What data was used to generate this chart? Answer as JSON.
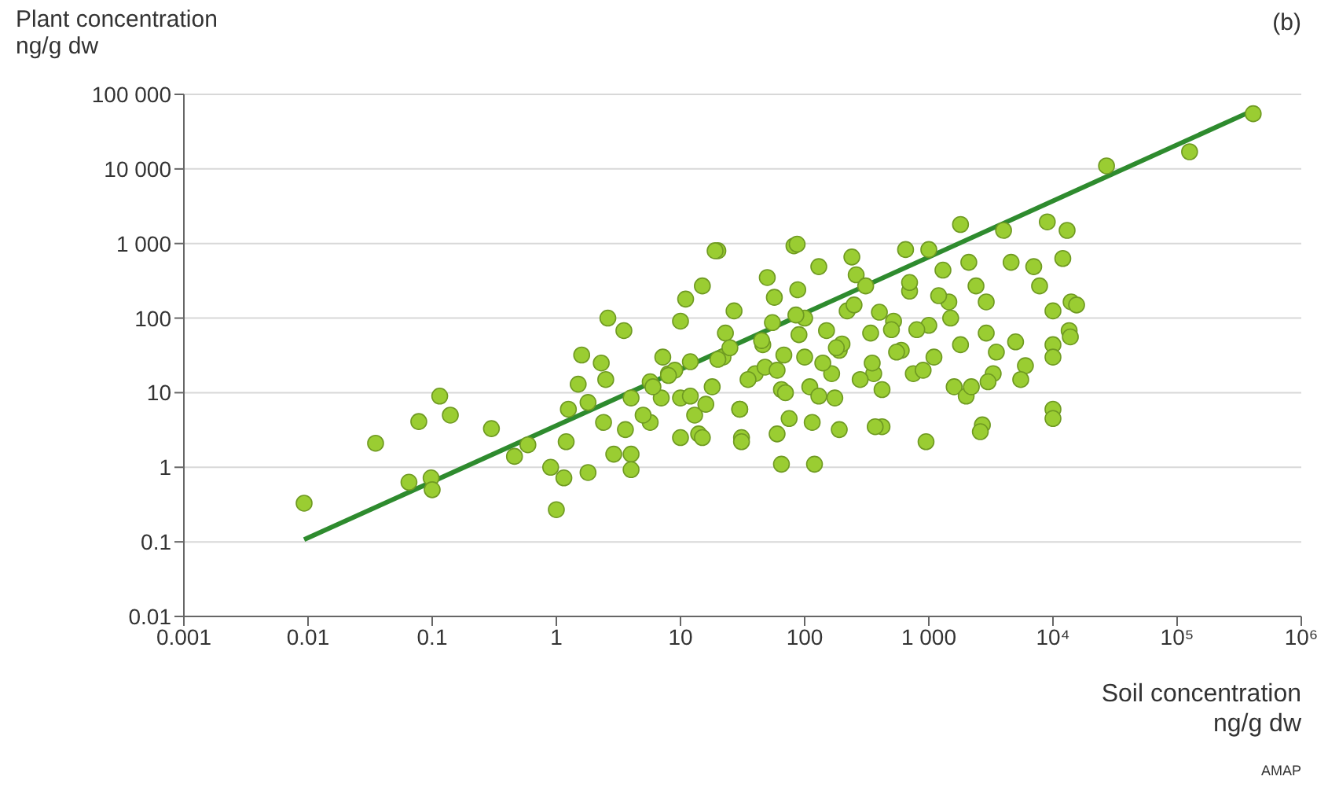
{
  "chart_data": {
    "type": "scatter",
    "xlabel": "Soil concentration\nng/g dw",
    "ylabel": "Plant concentration\nng/g dw",
    "annotations": [
      "(b)",
      "AMAP"
    ],
    "log": "xy",
    "grid": "y",
    "legend": false,
    "xlim": [
      0.001,
      1000000
    ],
    "xticks": [
      0.001,
      0.01,
      0.1,
      1,
      10,
      100,
      {
        "value": 1000,
        "label": "1 000"
      },
      {
        "value": 10000,
        "label": "10⁴"
      },
      {
        "value": 100000,
        "label": "10⁵"
      },
      {
        "value": 1000000,
        "label": "10⁶"
      }
    ],
    "ylim": [
      0.01,
      100000
    ],
    "yticks": [
      0.01,
      0.1,
      1,
      10,
      100,
      {
        "value": 1000,
        "label": "1 000"
      },
      {
        "value": 10000,
        "label": "10 000"
      },
      {
        "value": 100000,
        "label": "100 000"
      }
    ],
    "series": [
      {
        "type": "scatter",
        "color": "#9acd32",
        "x": [
          0.0093,
          0.035,
          0.065,
          0.098,
          0.1,
          0.078,
          0.115,
          0.14,
          0.3,
          0.46,
          0.59,
          0.9,
          1.0,
          1.15,
          1.2,
          1.8,
          1.25,
          1.8,
          2.4,
          2.3,
          2.6,
          3.5,
          1.6,
          1.5,
          2.5,
          4,
          4,
          4,
          3.6,
          2.9,
          5.7,
          5.7,
          7.2,
          10,
          11,
          15,
          20,
          7,
          8,
          12,
          10,
          13,
          10,
          14,
          18,
          22,
          23,
          27,
          30,
          31,
          40,
          46,
          55,
          50,
          57,
          68,
          65,
          75,
          65,
          82,
          88,
          100,
          100,
          110,
          115,
          120,
          130,
          150,
          165,
          175,
          190,
          220,
          260,
          240,
          310,
          340,
          360,
          420,
          420,
          520,
          600,
          650,
          700,
          750,
          950,
          1000,
          1000,
          1100,
          1300,
          1450,
          1600,
          1800,
          2100,
          2400,
          2700,
          2900,
          2900,
          3300,
          4000,
          4600,
          5000,
          6000,
          7000,
          7800,
          9000,
          10000,
          10000,
          10000,
          10000,
          12000,
          13000,
          13500,
          14000,
          1800,
          27000,
          126000,
          410000,
          15500,
          13800,
          10000,
          19,
          87,
          15,
          31,
          60,
          190,
          370,
          2600,
          6,
          9,
          16,
          25,
          35,
          48,
          70,
          90,
          140,
          200,
          280,
          400,
          550,
          800,
          1200,
          2000,
          3000,
          5,
          8,
          12,
          20,
          30,
          45,
          60,
          85,
          130,
          180,
          250,
          350,
          500,
          700,
          900,
          1500,
          2200,
          3500,
          5500
        ],
        "values": [
          0.33,
          2.1,
          0.63,
          0.72,
          0.5,
          4.1,
          9,
          5,
          3.3,
          1.4,
          2,
          1,
          0.27,
          0.72,
          2.2,
          0.85,
          6,
          7.4,
          4,
          25,
          100,
          68,
          32,
          13,
          15,
          8.5,
          1.5,
          0.93,
          3.2,
          1.5,
          4,
          14,
          30,
          91,
          180,
          270,
          800,
          8.5,
          18,
          26,
          8.5,
          5,
          2.5,
          2.8,
          12,
          30,
          63,
          125,
          6,
          2.5,
          18,
          44,
          87,
          350,
          190,
          32,
          11,
          4.5,
          1.1,
          930,
          240,
          100,
          30,
          12,
          4,
          1.1,
          490,
          68,
          18,
          8.5,
          37,
          125,
          380,
          660,
          270,
          63,
          18,
          3.5,
          11,
          91,
          37,
          830,
          230,
          18,
          2.2,
          830,
          80,
          30,
          440,
          165,
          12,
          44,
          560,
          270,
          3.7,
          165,
          63,
          18,
          1500,
          560,
          48,
          23,
          490,
          270,
          1950,
          125,
          44,
          6,
          4.5,
          630,
          1500,
          68,
          165,
          1800,
          11000,
          17000,
          55000,
          150,
          56,
          30,
          800,
          980,
          2.5,
          2.2,
          2.8,
          3.2,
          3.5,
          3,
          12,
          20,
          7,
          40,
          15,
          22,
          10,
          60,
          25,
          45,
          15,
          120,
          35,
          70,
          200,
          9,
          14,
          5,
          17,
          9,
          28,
          6,
          50,
          20,
          110,
          9,
          40,
          150,
          25,
          70,
          300,
          20,
          100,
          12,
          35,
          15
        ],
        "marker": "circle"
      },
      {
        "type": "line",
        "color": "#2e8b2e",
        "x": [
          0.0093,
          410000
        ],
        "values": [
          0.107,
          61000
        ],
        "marker": "none"
      }
    ]
  }
}
